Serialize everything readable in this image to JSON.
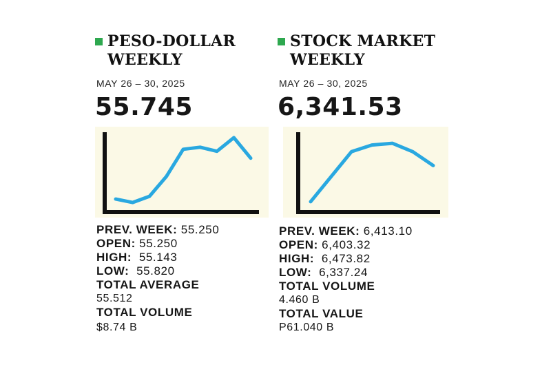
{
  "peso": {
    "title": "PESO-DOLLAR\nWEEKLY",
    "date": "MAY 26 – 30, 2025",
    "big_value": "55.745",
    "stats": {
      "prev_week_label": "PREV. WEEK:",
      "prev_week_value": " 55.250",
      "open_label": "OPEN:",
      "open_value": " 55.250",
      "high_label": "HIGH:",
      "high_value": "  55.143",
      "low_label": "LOW:",
      "low_value": "  55.820",
      "total_average_label": "TOTAL AVERAGE",
      "total_average_value": "55.512",
      "total_volume_label": "TOTAL VOLUME",
      "total_volume_value": "$8.74 B"
    }
  },
  "stock": {
    "title": "STOCK MARKET\nWEEKLY",
    "date": "MAY 26 – 30, 2025",
    "big_value": "6,341.53",
    "stats": {
      "prev_week_label": "PREV. WEEK:",
      "prev_week_value": " 6,413.10",
      "open_label": "OPEN:",
      "open_value": " 6,403.32",
      "high_label": "HIGH:",
      "high_value": "  6,473.82",
      "low_label": "LOW:",
      "low_value": "  6,337.24",
      "total_volume_label": "TOTAL VOLUME",
      "total_volume_value": "4.460 B",
      "total_value_label": "TOTAL VALUE",
      "total_value_value": "P61.040 B"
    }
  },
  "colors": {
    "accent_square": "#2ea84f",
    "chart_bg": "#fbf9e6",
    "line": "#29a8e0",
    "axis": "#111111"
  },
  "chart_data": [
    {
      "type": "line",
      "title": "PESO-DOLLAR WEEKLY",
      "xlabel": "",
      "ylabel": "",
      "x": [
        1,
        2,
        3,
        4,
        5,
        6,
        7,
        8,
        9
      ],
      "values": [
        1.2,
        0.7,
        1.6,
        4.5,
        8.5,
        8.8,
        8.2,
        10.2,
        7.2
      ],
      "ylim": [
        0,
        11
      ]
    },
    {
      "type": "line",
      "title": "STOCK MARKET WEEKLY",
      "xlabel": "",
      "ylabel": "",
      "x": [
        1,
        2,
        3,
        4,
        5,
        6,
        7
      ],
      "values": [
        1.0,
        5.5,
        10.0,
        11.2,
        11.5,
        10.0,
        7.5
      ],
      "ylim": [
        0,
        13.5
      ]
    }
  ]
}
